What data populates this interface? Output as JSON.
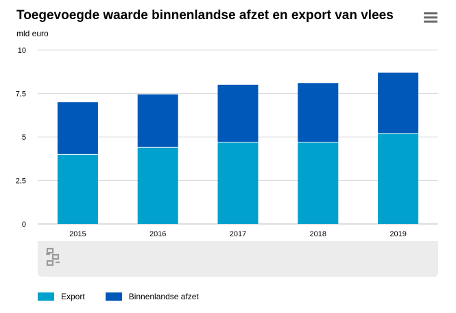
{
  "title": "Toegevoegde waarde binnenlandse afzet en export van vlees",
  "unit": "mld euro",
  "menu_icon": "hamburger-menu-icon",
  "logo_icon": "cbs-logo-icon",
  "colors": {
    "export": "#00a1cd",
    "binnenlands": "#0058b8",
    "grid": "#dcdcdc",
    "band": "#ececec"
  },
  "legend": [
    {
      "label": "Export",
      "color": "#00a1cd"
    },
    {
      "label": "Binnenlandse afzet",
      "color": "#0058b8"
    }
  ],
  "chart_data": {
    "type": "bar",
    "stacked": true,
    "categories": [
      "2015",
      "2016",
      "2017",
      "2018",
      "2019"
    ],
    "series": [
      {
        "name": "Export",
        "values": [
          4.0,
          4.4,
          4.7,
          4.7,
          5.2
        ]
      },
      {
        "name": "Binnenlandse afzet",
        "values": [
          3.0,
          3.05,
          3.3,
          3.4,
          3.5
        ]
      }
    ],
    "ylim": [
      0,
      10
    ],
    "yticks": [
      0,
      2.5,
      5,
      7.5,
      10
    ],
    "ytick_labels": [
      "0",
      "2,5",
      "5",
      "7,5",
      "10"
    ],
    "ylabel": "mld euro",
    "xlabel": "",
    "grid": true,
    "legend_position": "bottom-left"
  }
}
